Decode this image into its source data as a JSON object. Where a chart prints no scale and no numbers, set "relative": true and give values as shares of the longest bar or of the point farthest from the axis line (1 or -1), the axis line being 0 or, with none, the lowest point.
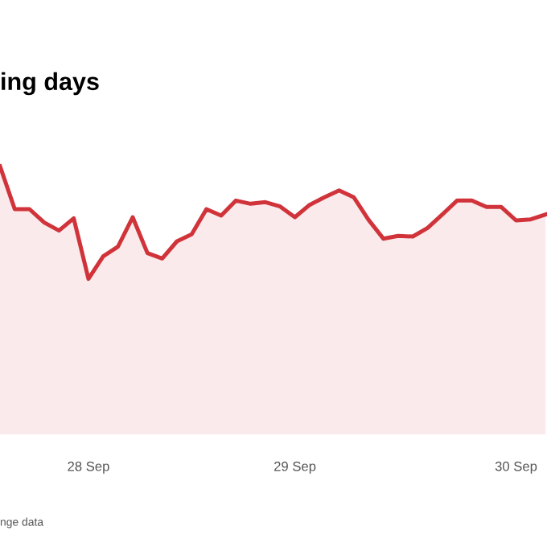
{
  "chart_data": {
    "type": "area",
    "title": "ing days",
    "relative": true,
    "categories": [
      null,
      null,
      null,
      null,
      null,
      null,
      "28 Sep",
      null,
      null,
      null,
      null,
      null,
      null,
      null,
      null,
      null,
      null,
      null,
      null,
      null,
      "29 Sep",
      null,
      null,
      null,
      null,
      null,
      null,
      null,
      null,
      null,
      null,
      null,
      null,
      null,
      null,
      "30 Sep",
      null,
      null
    ],
    "series": [
      {
        "color": "#d0343a",
        "values": [
          1.0,
          0.84,
          0.84,
          0.79,
          0.76,
          0.806,
          0.58,
          0.664,
          0.7,
          0.81,
          0.676,
          0.656,
          0.72,
          0.746,
          0.84,
          0.816,
          0.872,
          0.86,
          0.866,
          0.85,
          0.81,
          0.856,
          0.884,
          0.91,
          0.884,
          0.8,
          0.73,
          0.74,
          0.738,
          0.77,
          0.82,
          0.872,
          0.872,
          0.848,
          0.848,
          0.798,
          0.802,
          0.82
        ]
      }
    ],
    "annotations": [
      "nge data"
    ]
  }
}
